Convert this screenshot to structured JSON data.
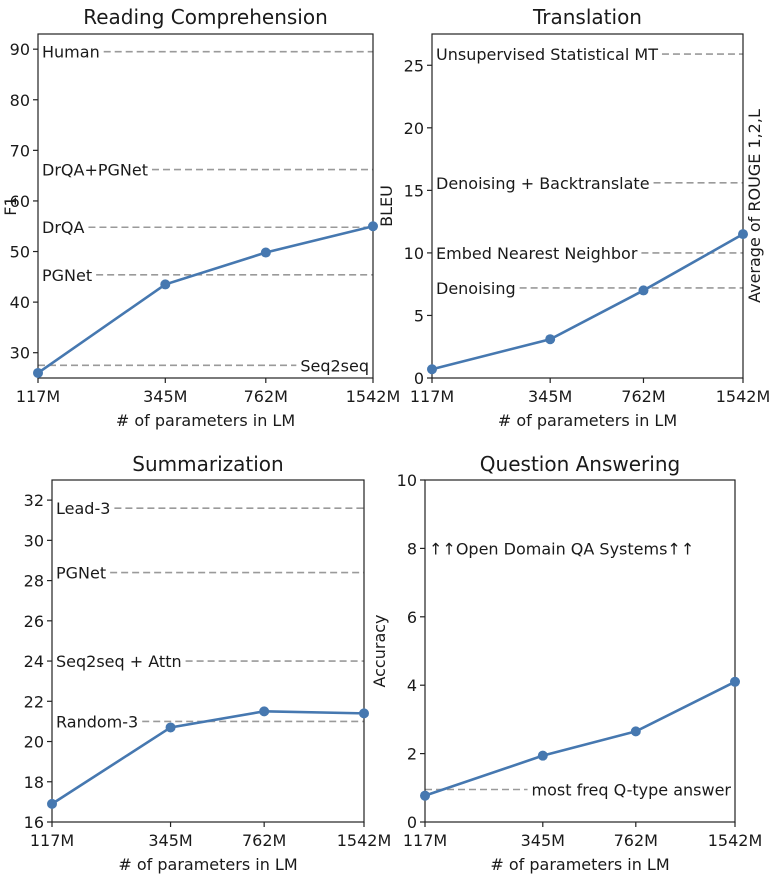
{
  "chart_data": [
    {
      "type": "line",
      "title": "Reading Comprehension",
      "xlabel": "# of parameters in LM",
      "ylabel": "F1",
      "ylabel_right": "",
      "x_ticks": [
        "117M",
        "345M",
        "762M",
        "1542M"
      ],
      "ylim": [
        25,
        93
      ],
      "y_ticks": [
        30,
        40,
        50,
        60,
        70,
        80,
        90
      ],
      "series": [
        {
          "values": [
            26.0,
            43.5,
            49.8,
            55.0
          ]
        }
      ],
      "reference_lines": [
        {
          "label": "Human",
          "value": 89.5,
          "label_pos": "left"
        },
        {
          "label": "DrQA+PGNet",
          "value": 66.2,
          "label_pos": "left"
        },
        {
          "label": "DrQA",
          "value": 54.8,
          "label_pos": "left"
        },
        {
          "label": "PGNet",
          "value": 45.4,
          "label_pos": "left"
        },
        {
          "label": "Seq2seq",
          "value": 27.5,
          "label_pos": "right"
        }
      ]
    },
    {
      "type": "line",
      "title": "Translation",
      "xlabel": "# of parameters in LM",
      "ylabel": "BLEU",
      "ylabel_right": "Average of ROUGE 1,2,L",
      "x_ticks": [
        "117M",
        "345M",
        "762M",
        "1542M"
      ],
      "ylim": [
        0,
        27.5
      ],
      "y_ticks": [
        0,
        5,
        10,
        15,
        20,
        25
      ],
      "series": [
        {
          "values": [
            0.7,
            3.1,
            7.0,
            11.5
          ]
        }
      ],
      "reference_lines": [
        {
          "label": "Unsupervised Statistical MT",
          "value": 25.9,
          "label_pos": "left"
        },
        {
          "label": "Denoising + Backtranslate",
          "value": 15.6,
          "label_pos": "left"
        },
        {
          "label": "Embed Nearest Neighbor",
          "value": 10.0,
          "label_pos": "left"
        },
        {
          "label": "Denoising",
          "value": 7.2,
          "label_pos": "left"
        }
      ]
    },
    {
      "type": "line",
      "title": "Summarization",
      "xlabel": "# of parameters in LM",
      "ylabel": "",
      "ylabel_right": "",
      "x_ticks": [
        "117M",
        "345M",
        "762M",
        "1542M"
      ],
      "ylim": [
        16,
        33
      ],
      "y_ticks": [
        16,
        18,
        20,
        22,
        24,
        26,
        28,
        30,
        32
      ],
      "series": [
        {
          "values": [
            16.9,
            20.7,
            21.5,
            21.4
          ]
        }
      ],
      "reference_lines": [
        {
          "label": "Lead-3",
          "value": 31.6,
          "label_pos": "left"
        },
        {
          "label": "PGNet",
          "value": 28.4,
          "label_pos": "left"
        },
        {
          "label": "Seq2seq + Attn",
          "value": 24.0,
          "label_pos": "left"
        },
        {
          "label": "Random-3",
          "value": 21.0,
          "label_pos": "left"
        }
      ]
    },
    {
      "type": "line",
      "title": "Question Answering",
      "xlabel": "# of parameters in LM",
      "ylabel": "Accuracy",
      "ylabel_right": "",
      "x_ticks": [
        "117M",
        "345M",
        "762M",
        "1542M"
      ],
      "ylim": [
        0,
        10
      ],
      "y_ticks": [
        0,
        2,
        4,
        6,
        8,
        10
      ],
      "series": [
        {
          "values": [
            0.77,
            1.94,
            2.65,
            4.1
          ]
        }
      ],
      "reference_lines": [
        {
          "label": "↑↑Open Domain QA Systems↑↑",
          "value": 8.0,
          "label_pos": "left",
          "no_line": true
        },
        {
          "label": "most freq Q-type answer",
          "value": 0.95,
          "label_pos": "right"
        }
      ]
    }
  ]
}
